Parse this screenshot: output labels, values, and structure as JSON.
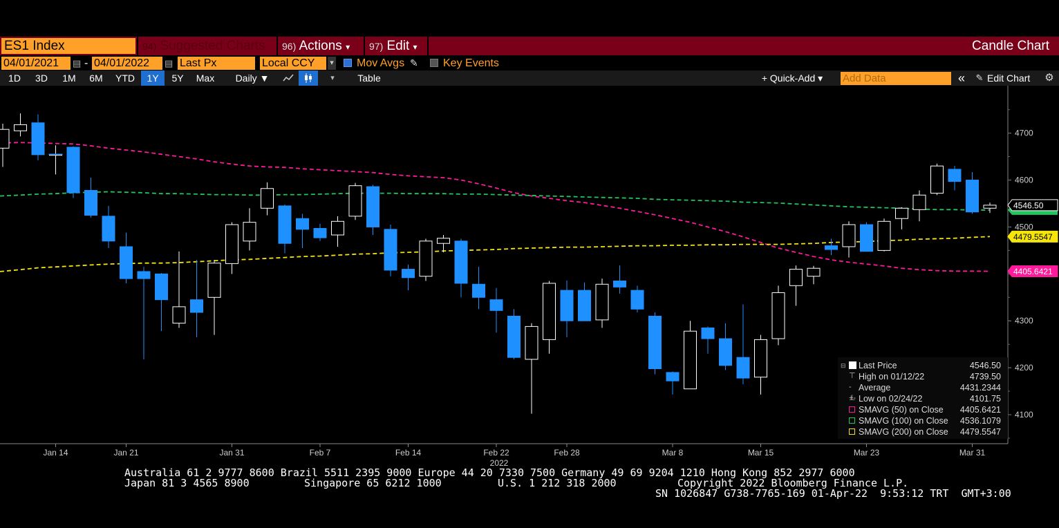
{
  "header": {
    "ticker": "ES1 Index",
    "menu_suggested": {
      "num": "94)",
      "label": "Suggested Charts"
    },
    "menu_actions": {
      "num": "96)",
      "label": "Actions"
    },
    "menu_edit": {
      "num": "97)",
      "label": "Edit"
    },
    "chart_type_label": "Candle Chart"
  },
  "controls": {
    "start_date": "04/01/2021",
    "end_date": "04/01/2022",
    "date_dash": "-",
    "price_field": "Last Px",
    "currency": "Local CCY",
    "mov_avgs_label": "Mov Avgs",
    "key_events_label": "Key Events"
  },
  "toolbar": {
    "periods": [
      "1D",
      "3D",
      "1M",
      "6M",
      "YTD",
      "1Y",
      "5Y",
      "Max"
    ],
    "active_period": "1Y",
    "frequency": "Daily ▼",
    "table_label": "Table",
    "quick_add_label": "+ Quick-Add ▾",
    "add_data_placeholder": "Add Data",
    "collapse_label": "«",
    "edit_chart_label": "Edit Chart"
  },
  "legend": {
    "last_price": {
      "label": "Last Price",
      "value": "4546.50"
    },
    "high": {
      "label": "High on 01/12/22",
      "value": "4739.50"
    },
    "average": {
      "label": "Average",
      "value": "4431.2344"
    },
    "low": {
      "label": "Low on 02/24/22",
      "value": "4101.75"
    },
    "sma50": {
      "label": "SMAVG (50)  on Close",
      "value": "4405.6421"
    },
    "sma100": {
      "label": "SMAVG (100)  on Close",
      "value": "4536.1079"
    },
    "sma200": {
      "label": "SMAVG (200)  on Close",
      "value": "4479.5547"
    }
  },
  "colors": {
    "header_bg": "#7a0019",
    "amber": "#ffa028",
    "down_candle": "#1e90ff",
    "up_candle": "#000000",
    "sma50": "#ff1a9c",
    "sma100": "#22c55e",
    "sma200": "#f5e50a",
    "active_button": "#1f6fd1"
  },
  "footer": {
    "line1": "Australia 61 2 9777 8600 Brazil 5511 2395 9000 Europe 44 20 7330 7500 Germany 49 69 9204 1210 Hong Kong 852 2977 6000",
    "line2a": "Japan 81 3 4565 8900",
    "line2b": "Singapore 65 6212 1000",
    "line2c": "U.S. 1 212 318 2000",
    "line2d": "Copyright 2022 Bloomberg Finance L.P.",
    "line3": "SN 1026847 G738-7765-169 01-Apr-22  9:53:12 TRT  GMT+3:00"
  },
  "chart_data": {
    "type": "candlestick",
    "y_ticks": [
      4100,
      4200,
      4300,
      4400,
      4500,
      4600,
      4700
    ],
    "ylim": [
      4040,
      4800
    ],
    "x_ticks": [
      "Jan 14",
      "Jan 21",
      "Jan 31",
      "Feb 7",
      "Feb 14",
      "Feb 22",
      "Feb 28",
      "Mar 8",
      "Mar 15",
      "Mar 23",
      "Mar 31"
    ],
    "x_year_label": "2022",
    "price_tags": [
      {
        "label": "4546.50",
        "value": 4546.5
      },
      {
        "label": "4479.5547",
        "value": 4479.55
      },
      {
        "label": "4405.6421",
        "value": 4405.64
      }
    ],
    "candles": [
      {
        "o": 4668,
        "h": 4720,
        "l": 4628,
        "c": 4708
      },
      {
        "o": 4705,
        "h": 4742,
        "l": 4693,
        "c": 4718
      },
      {
        "o": 4722,
        "h": 4740,
        "l": 4642,
        "c": 4654
      },
      {
        "o": 4654,
        "h": 4674,
        "l": 4612,
        "c": 4655
      },
      {
        "o": 4670,
        "h": 4672,
        "l": 4562,
        "c": 4573
      },
      {
        "o": 4578,
        "h": 4605,
        "l": 4520,
        "c": 4525
      },
      {
        "o": 4523,
        "h": 4545,
        "l": 4455,
        "c": 4470
      },
      {
        "o": 4458,
        "h": 4488,
        "l": 4380,
        "c": 4390
      },
      {
        "o": 4405,
        "h": 4415,
        "l": 4218,
        "c": 4390
      },
      {
        "o": 4400,
        "h": 4402,
        "l": 4278,
        "c": 4345
      },
      {
        "o": 4295,
        "h": 4448,
        "l": 4285,
        "c": 4330
      },
      {
        "o": 4345,
        "h": 4430,
        "l": 4265,
        "c": 4318
      },
      {
        "o": 4350,
        "h": 4430,
        "l": 4270,
        "c": 4423
      },
      {
        "o": 4422,
        "h": 4510,
        "l": 4400,
        "c": 4505
      },
      {
        "o": 4470,
        "h": 4540,
        "l": 4450,
        "c": 4510
      },
      {
        "o": 4540,
        "h": 4595,
        "l": 4525,
        "c": 4582
      },
      {
        "o": 4545,
        "h": 4548,
        "l": 4444,
        "c": 4465
      },
      {
        "o": 4518,
        "h": 4528,
        "l": 4455,
        "c": 4495
      },
      {
        "o": 4497,
        "h": 4507,
        "l": 4470,
        "c": 4477
      },
      {
        "o": 4483,
        "h": 4523,
        "l": 4458,
        "c": 4512
      },
      {
        "o": 4523,
        "h": 4594,
        "l": 4515,
        "c": 4588
      },
      {
        "o": 4586,
        "h": 4590,
        "l": 4483,
        "c": 4500
      },
      {
        "o": 4495,
        "h": 4505,
        "l": 4395,
        "c": 4408
      },
      {
        "o": 4410,
        "h": 4420,
        "l": 4365,
        "c": 4392
      },
      {
        "o": 4395,
        "h": 4475,
        "l": 4385,
        "c": 4470
      },
      {
        "o": 4465,
        "h": 4483,
        "l": 4446,
        "c": 4476
      },
      {
        "o": 4470,
        "h": 4475,
        "l": 4350,
        "c": 4380
      },
      {
        "o": 4378,
        "h": 4415,
        "l": 4325,
        "c": 4350
      },
      {
        "o": 4345,
        "h": 4370,
        "l": 4275,
        "c": 4322
      },
      {
        "o": 4310,
        "h": 4325,
        "l": 4218,
        "c": 4222
      },
      {
        "o": 4218,
        "h": 4295,
        "l": 4102,
        "c": 4288
      },
      {
        "o": 4260,
        "h": 4385,
        "l": 4230,
        "c": 4380
      },
      {
        "o": 4365,
        "h": 4386,
        "l": 4265,
        "c": 4300
      },
      {
        "o": 4365,
        "h": 4382,
        "l": 4300,
        "c": 4300
      },
      {
        "o": 4302,
        "h": 4390,
        "l": 4285,
        "c": 4378
      },
      {
        "o": 4385,
        "h": 4418,
        "l": 4358,
        "c": 4372
      },
      {
        "o": 4365,
        "h": 4375,
        "l": 4318,
        "c": 4325
      },
      {
        "o": 4310,
        "h": 4318,
        "l": 4186,
        "c": 4198
      },
      {
        "o": 4190,
        "h": 4192,
        "l": 4143,
        "c": 4172
      },
      {
        "o": 4155,
        "h": 4300,
        "l": 4155,
        "c": 4278
      },
      {
        "o": 4285,
        "h": 4288,
        "l": 4230,
        "c": 4262
      },
      {
        "o": 4262,
        "h": 4295,
        "l": 4195,
        "c": 4205
      },
      {
        "o": 4222,
        "h": 4335,
        "l": 4165,
        "c": 4178
      },
      {
        "o": 4180,
        "h": 4270,
        "l": 4143,
        "c": 4260
      },
      {
        "o": 4262,
        "h": 4375,
        "l": 4248,
        "c": 4360
      },
      {
        "o": 4375,
        "h": 4418,
        "l": 4332,
        "c": 4410
      },
      {
        "o": 4395,
        "h": 4417,
        "l": 4378,
        "c": 4412
      },
      {
        "o": 4460,
        "h": 4475,
        "l": 4440,
        "c": 4452
      },
      {
        "o": 4458,
        "h": 4512,
        "l": 4435,
        "c": 4505
      },
      {
        "o": 4505,
        "h": 4510,
        "l": 4448,
        "c": 4448
      },
      {
        "o": 4450,
        "h": 4518,
        "l": 4448,
        "c": 4512
      },
      {
        "o": 4518,
        "h": 4542,
        "l": 4495,
        "c": 4540
      },
      {
        "o": 4537,
        "h": 4578,
        "l": 4512,
        "c": 4568
      },
      {
        "o": 4572,
        "h": 4635,
        "l": 4568,
        "c": 4630
      },
      {
        "o": 4623,
        "h": 4630,
        "l": 4578,
        "c": 4597
      },
      {
        "o": 4600,
        "h": 4617,
        "l": 4528,
        "c": 4532
      },
      {
        "o": 4540,
        "h": 4552,
        "l": 4530,
        "c": 4546.5
      }
    ],
    "series": [
      {
        "name": "SMAVG (50)",
        "values": [
          4679,
          4680,
          4679,
          4678,
          4677,
          4673,
          4668,
          4664,
          4660,
          4655,
          4650,
          4645,
          4639,
          4634,
          4630,
          4628,
          4627,
          4624,
          4622,
          4620,
          4618,
          4616,
          4612,
          4609,
          4607,
          4605,
          4600,
          4592,
          4583,
          4573,
          4566,
          4561,
          4556,
          4552,
          4546,
          4540,
          4533,
          4526,
          4518,
          4510,
          4500,
          4490,
          4479,
          4467,
          4455,
          4446,
          4437,
          4430,
          4425,
          4421,
          4417,
          4412,
          4409,
          4407,
          4406,
          4406,
          4405.64
        ]
      },
      {
        "name": "SMAVG (100)",
        "values": [
          4566,
          4568,
          4570,
          4571,
          4573,
          4574,
          4575,
          4574,
          4573,
          4571,
          4571,
          4570,
          4569,
          4569,
          4568,
          4568,
          4569,
          4569,
          4570,
          4571,
          4572,
          4572,
          4572,
          4571,
          4571,
          4571,
          4570,
          4570,
          4569,
          4568,
          4567,
          4566,
          4565,
          4564,
          4563,
          4562,
          4561,
          4559,
          4558,
          4557,
          4556,
          4555,
          4553,
          4552,
          4551,
          4549,
          4547,
          4545,
          4543,
          4542,
          4541,
          4540,
          4538,
          4537,
          4537,
          4536,
          4536.1
        ]
      },
      {
        "name": "SMAVG (200)",
        "values": [
          4405,
          4409,
          4413,
          4415,
          4417,
          4419,
          4421,
          4422,
          4423,
          4423,
          4424,
          4426,
          4428,
          4430,
          4431,
          4433,
          4435,
          4437,
          4438,
          4440,
          4442,
          4443,
          4445,
          4446,
          4447,
          4449,
          4450,
          4451,
          4452,
          4454,
          4455,
          4456,
          4457,
          4457,
          4458,
          4459,
          4460,
          4460,
          4461,
          4461,
          4462,
          4462,
          4463,
          4463,
          4463,
          4464,
          4465,
          4467,
          4468,
          4469,
          4471,
          4472,
          4474,
          4475,
          4476,
          4478,
          4479.55
        ]
      }
    ]
  }
}
